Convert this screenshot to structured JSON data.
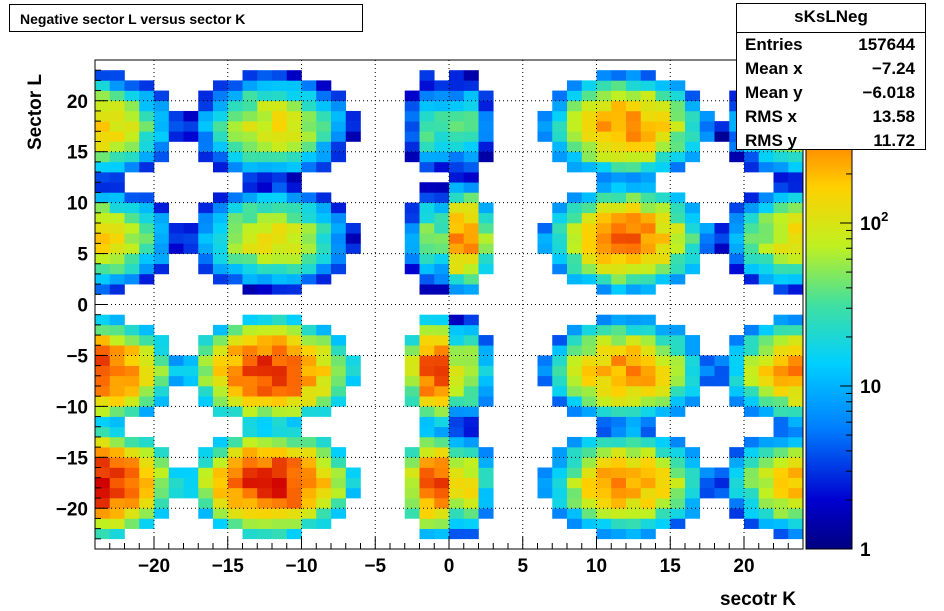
{
  "title": "Negative sector L versus sector K",
  "stats": {
    "name": "sKsLNeg",
    "rows": [
      {
        "label": "Entries",
        "value": "157644"
      },
      {
        "label": "Mean x",
        "value": "−7.24"
      },
      {
        "label": "Mean y",
        "value": "−6.018"
      },
      {
        "label": "RMS x",
        "value": "13.58"
      },
      {
        "label": "RMS y",
        "value": "11.72"
      }
    ]
  },
  "chart_data": {
    "type": "heatmap",
    "xlabel": "secotr K",
    "ylabel": "Sector L",
    "xlim": [
      -24,
      24
    ],
    "ylim": [
      -24,
      24
    ],
    "x_ticks": [
      -20,
      -15,
      -10,
      -5,
      0,
      5,
      10,
      15,
      20
    ],
    "y_ticks": [
      -20,
      -15,
      -10,
      -5,
      0,
      5,
      10,
      15,
      20
    ],
    "x_tick_labels": [
      "−20",
      "−15",
      "−10",
      "−5",
      "0",
      "5",
      "10",
      "15",
      "20"
    ],
    "y_tick_labels": [
      "−20",
      "−15",
      "−10",
      "−5",
      "0",
      "5",
      "10",
      "15",
      "20"
    ],
    "colorbar": {
      "scale": "log",
      "min": 1,
      "max": 1000,
      "tick_values": [
        1,
        10,
        100
      ],
      "tick_labels": [
        "1",
        "10",
        "10^2"
      ]
    },
    "grid": true,
    "clusters": [
      {
        "x_center": -12,
        "y_center": -17.5,
        "peak": 800
      },
      {
        "x_center": -12,
        "y_center": -6.5,
        "peak": 700
      },
      {
        "x_center": -12,
        "y_center": 6.5,
        "peak": 120
      },
      {
        "x_center": -12,
        "y_center": 17.5,
        "peak": 120
      },
      {
        "x_center": -24,
        "y_center": -17.5,
        "peak": 900
      },
      {
        "x_center": -24,
        "y_center": -6.5,
        "peak": 600
      },
      {
        "x_center": -24,
        "y_center": 6.5,
        "peak": 150
      },
      {
        "x_center": -24,
        "y_center": 17.5,
        "peak": 160
      },
      {
        "x_center": 12,
        "y_center": -17.5,
        "peak": 300
      },
      {
        "x_center": 12,
        "y_center": -6.5,
        "peak": 300
      },
      {
        "x_center": 12,
        "y_center": 6.5,
        "peak": 400
      },
      {
        "x_center": 12,
        "y_center": 17.5,
        "peak": 300
      },
      {
        "x_center": 24,
        "y_center": -17.5,
        "peak": 200
      },
      {
        "x_center": 24,
        "y_center": -6.5,
        "peak": 300
      },
      {
        "x_center": 24,
        "y_center": 6.5,
        "peak": 150
      },
      {
        "x_center": 24,
        "y_center": 17.5,
        "peak": 100
      },
      {
        "x_center": -1,
        "y_center": -17.5,
        "peak": 600
      },
      {
        "x_center": -1,
        "y_center": -6.5,
        "peak": 600
      },
      {
        "x_center": -1,
        "y_center": 6.5,
        "peak": 60
      },
      {
        "x_center": -1,
        "y_center": 17.5,
        "peak": 40
      },
      {
        "x_center": 1,
        "y_center": -17.5,
        "peak": 160
      },
      {
        "x_center": 1,
        "y_center": -6.5,
        "peak": 120
      },
      {
        "x_center": 1,
        "y_center": 6.5,
        "peak": 400
      },
      {
        "x_center": 1,
        "y_center": 17.5,
        "peak": 40
      }
    ]
  }
}
